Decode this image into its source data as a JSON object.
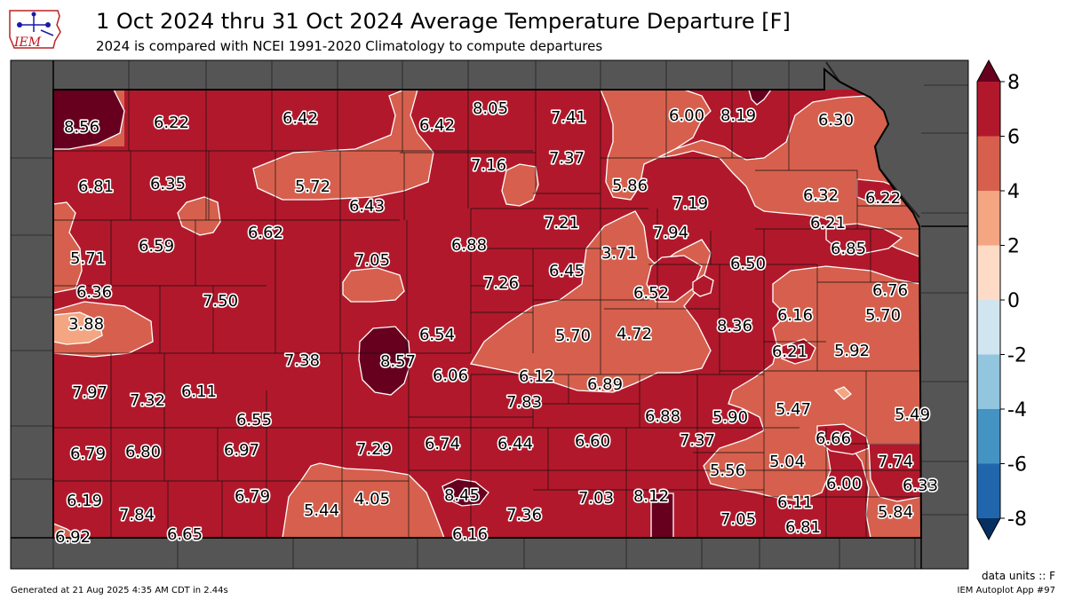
{
  "header": {
    "title": "1 Oct 2024 thru 31 Oct 2024 Average Temperature Departure [F]",
    "subtitle": "2024 is compared with NCEI 1991-2020 Climatology to compute departures",
    "logo_text": "IEM"
  },
  "footer": {
    "units": "data units :: F",
    "generated": "Generated at 21 Aug 2025 4:35 AM CDT in 2.44s",
    "app": "IEM Autoplot App #97"
  },
  "colorbar": {
    "ticks": [
      "8",
      "6",
      "4",
      "2",
      "0",
      "-2",
      "-4",
      "-6",
      "-8"
    ],
    "bins": [
      {
        "range": [
          6,
          8
        ],
        "color": "#b2182b"
      },
      {
        "range": [
          4,
          6
        ],
        "color": "#d6604d"
      },
      {
        "range": [
          2,
          4
        ],
        "color": "#f4a582"
      },
      {
        "range": [
          0,
          2
        ],
        "color": "#fddbc7"
      },
      {
        "range": [
          -2,
          0
        ],
        "color": "#d1e5f0"
      },
      {
        "range": [
          -4,
          -2
        ],
        "color": "#92c5de"
      },
      {
        "range": [
          -6,
          -4
        ],
        "color": "#4393c3"
      },
      {
        "range": [
          -8,
          -6
        ],
        "color": "#2166ac"
      }
    ],
    "over_color": "#67001f",
    "under_color": "#053061"
  },
  "map": {
    "background_color": "#555555",
    "state_fill": "#b2182b",
    "values": [
      "8.56",
      "6.22",
      "6.42",
      "6.42",
      "8.05",
      "7.41",
      "6.00",
      "8.19",
      "6.30",
      "6.81",
      "6.35",
      "5.72",
      "7.16",
      "7.37",
      "5.86",
      "6.32",
      "6.22",
      "6.43",
      "7.19",
      "6.21",
      "5.71",
      "6.59",
      "6.62",
      "7.21",
      "7.94",
      "6.85",
      "7.05",
      "6.88",
      "3.71",
      "6.50",
      "6.36",
      "7.50",
      "7.26",
      "6.45",
      "6.52",
      "6.76",
      "3.88",
      "6.54",
      "5.70",
      "4.72",
      "8.36",
      "6.16",
      "5.70",
      "7.38",
      "8.57",
      "6.06",
      "6.12",
      "6.89",
      "6.21",
      "5.92",
      "7.97",
      "7.32",
      "6.11",
      "7.83",
      "6.88",
      "5.90",
      "5.47",
      "5.49",
      "6.55",
      "6.97",
      "7.29",
      "6.74",
      "6.44",
      "6.60",
      "7.37",
      "6.66",
      "6.79",
      "6.80",
      "5.56",
      "5.04",
      "7.74",
      "6.00",
      "6.33",
      "6.19",
      "7.84",
      "6.79",
      "5.44",
      "4.05",
      "8.45",
      "7.03",
      "8.12",
      "6.11",
      "7.36",
      "7.05",
      "5.84",
      "6.92",
      "6.65",
      "6.16",
      "6.81"
    ]
  }
}
